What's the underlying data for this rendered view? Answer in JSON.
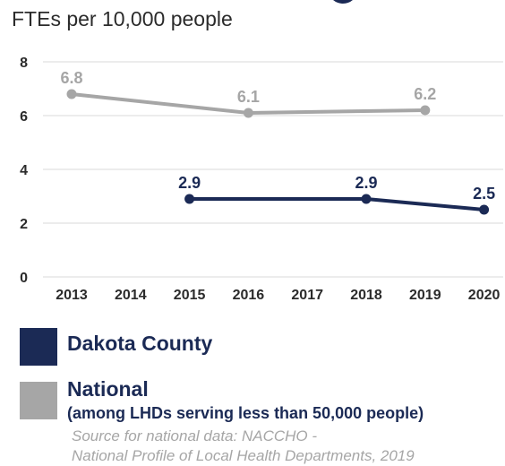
{
  "colors": {
    "dakota": "#1b2a55",
    "national": "#a6a6a6",
    "grid": "#d9d9d9",
    "title": "#2b2b2b",
    "source": "#a6a6a6"
  },
  "chart_data": {
    "type": "line",
    "title": "FTEs per 10,000 people",
    "xlabel": "",
    "ylabel": "",
    "categories": [
      "2013",
      "2014",
      "2015",
      "2016",
      "2017",
      "2018",
      "2019",
      "2020"
    ],
    "ylim": [
      0,
      8
    ],
    "yticks": [
      0,
      2,
      4,
      6,
      8
    ],
    "grid": true,
    "series": [
      {
        "name": "National",
        "color": "#a6a6a6",
        "points": [
          {
            "x": "2013",
            "y": 6.8,
            "label": "6.8"
          },
          {
            "x": "2016",
            "y": 6.1,
            "label": "6.1"
          },
          {
            "x": "2019",
            "y": 6.2,
            "label": "6.2"
          }
        ]
      },
      {
        "name": "Dakota County",
        "color": "#1b2a55",
        "points": [
          {
            "x": "2015",
            "y": 2.9,
            "label": "2.9"
          },
          {
            "x": "2018",
            "y": 2.9,
            "label": "2.9"
          },
          {
            "x": "2020",
            "y": 2.5,
            "label": "2.5"
          }
        ]
      }
    ]
  },
  "legend": {
    "dakota_label": "Dakota County",
    "national_label": "National",
    "national_sublabel": "(among LHDs serving less than 50,000 people)"
  },
  "source": {
    "line1": "Source for national data: NACCHO -",
    "line2": "National Profile of Local Health Departments, 2019"
  }
}
